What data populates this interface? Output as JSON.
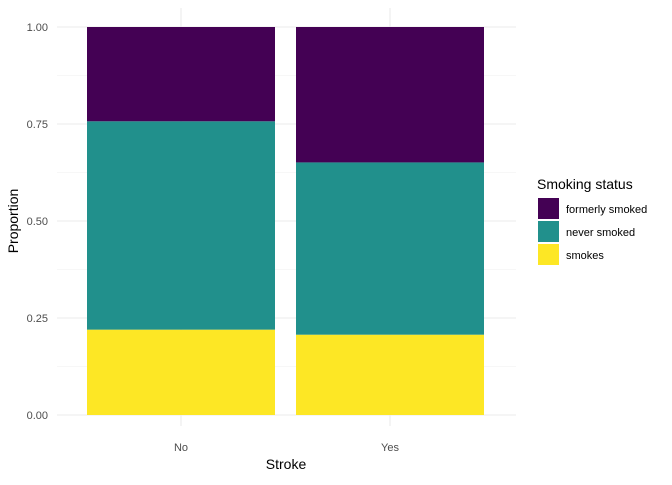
{
  "chart_data": {
    "type": "bar",
    "stacked": true,
    "xlabel": "Stroke",
    "ylabel": "Proportion",
    "categories": [
      "No",
      "Yes"
    ],
    "ylim": [
      0,
      1
    ],
    "yticks": [
      "0.00",
      "0.25",
      "0.50",
      "0.75",
      "1.00"
    ],
    "grid": true,
    "legend": {
      "title": "Smoking status",
      "placement": "right",
      "entries": [
        "formerly smoked",
        "never smoked",
        "smokes"
      ]
    },
    "series": [
      {
        "name": "smokes",
        "color": "#FDE725",
        "values": [
          0.22,
          0.207
        ]
      },
      {
        "name": "never smoked",
        "color": "#21908C",
        "values": [
          0.537,
          0.444
        ]
      },
      {
        "name": "formerly smoked",
        "color": "#440154",
        "values": [
          0.243,
          0.349
        ]
      }
    ]
  }
}
